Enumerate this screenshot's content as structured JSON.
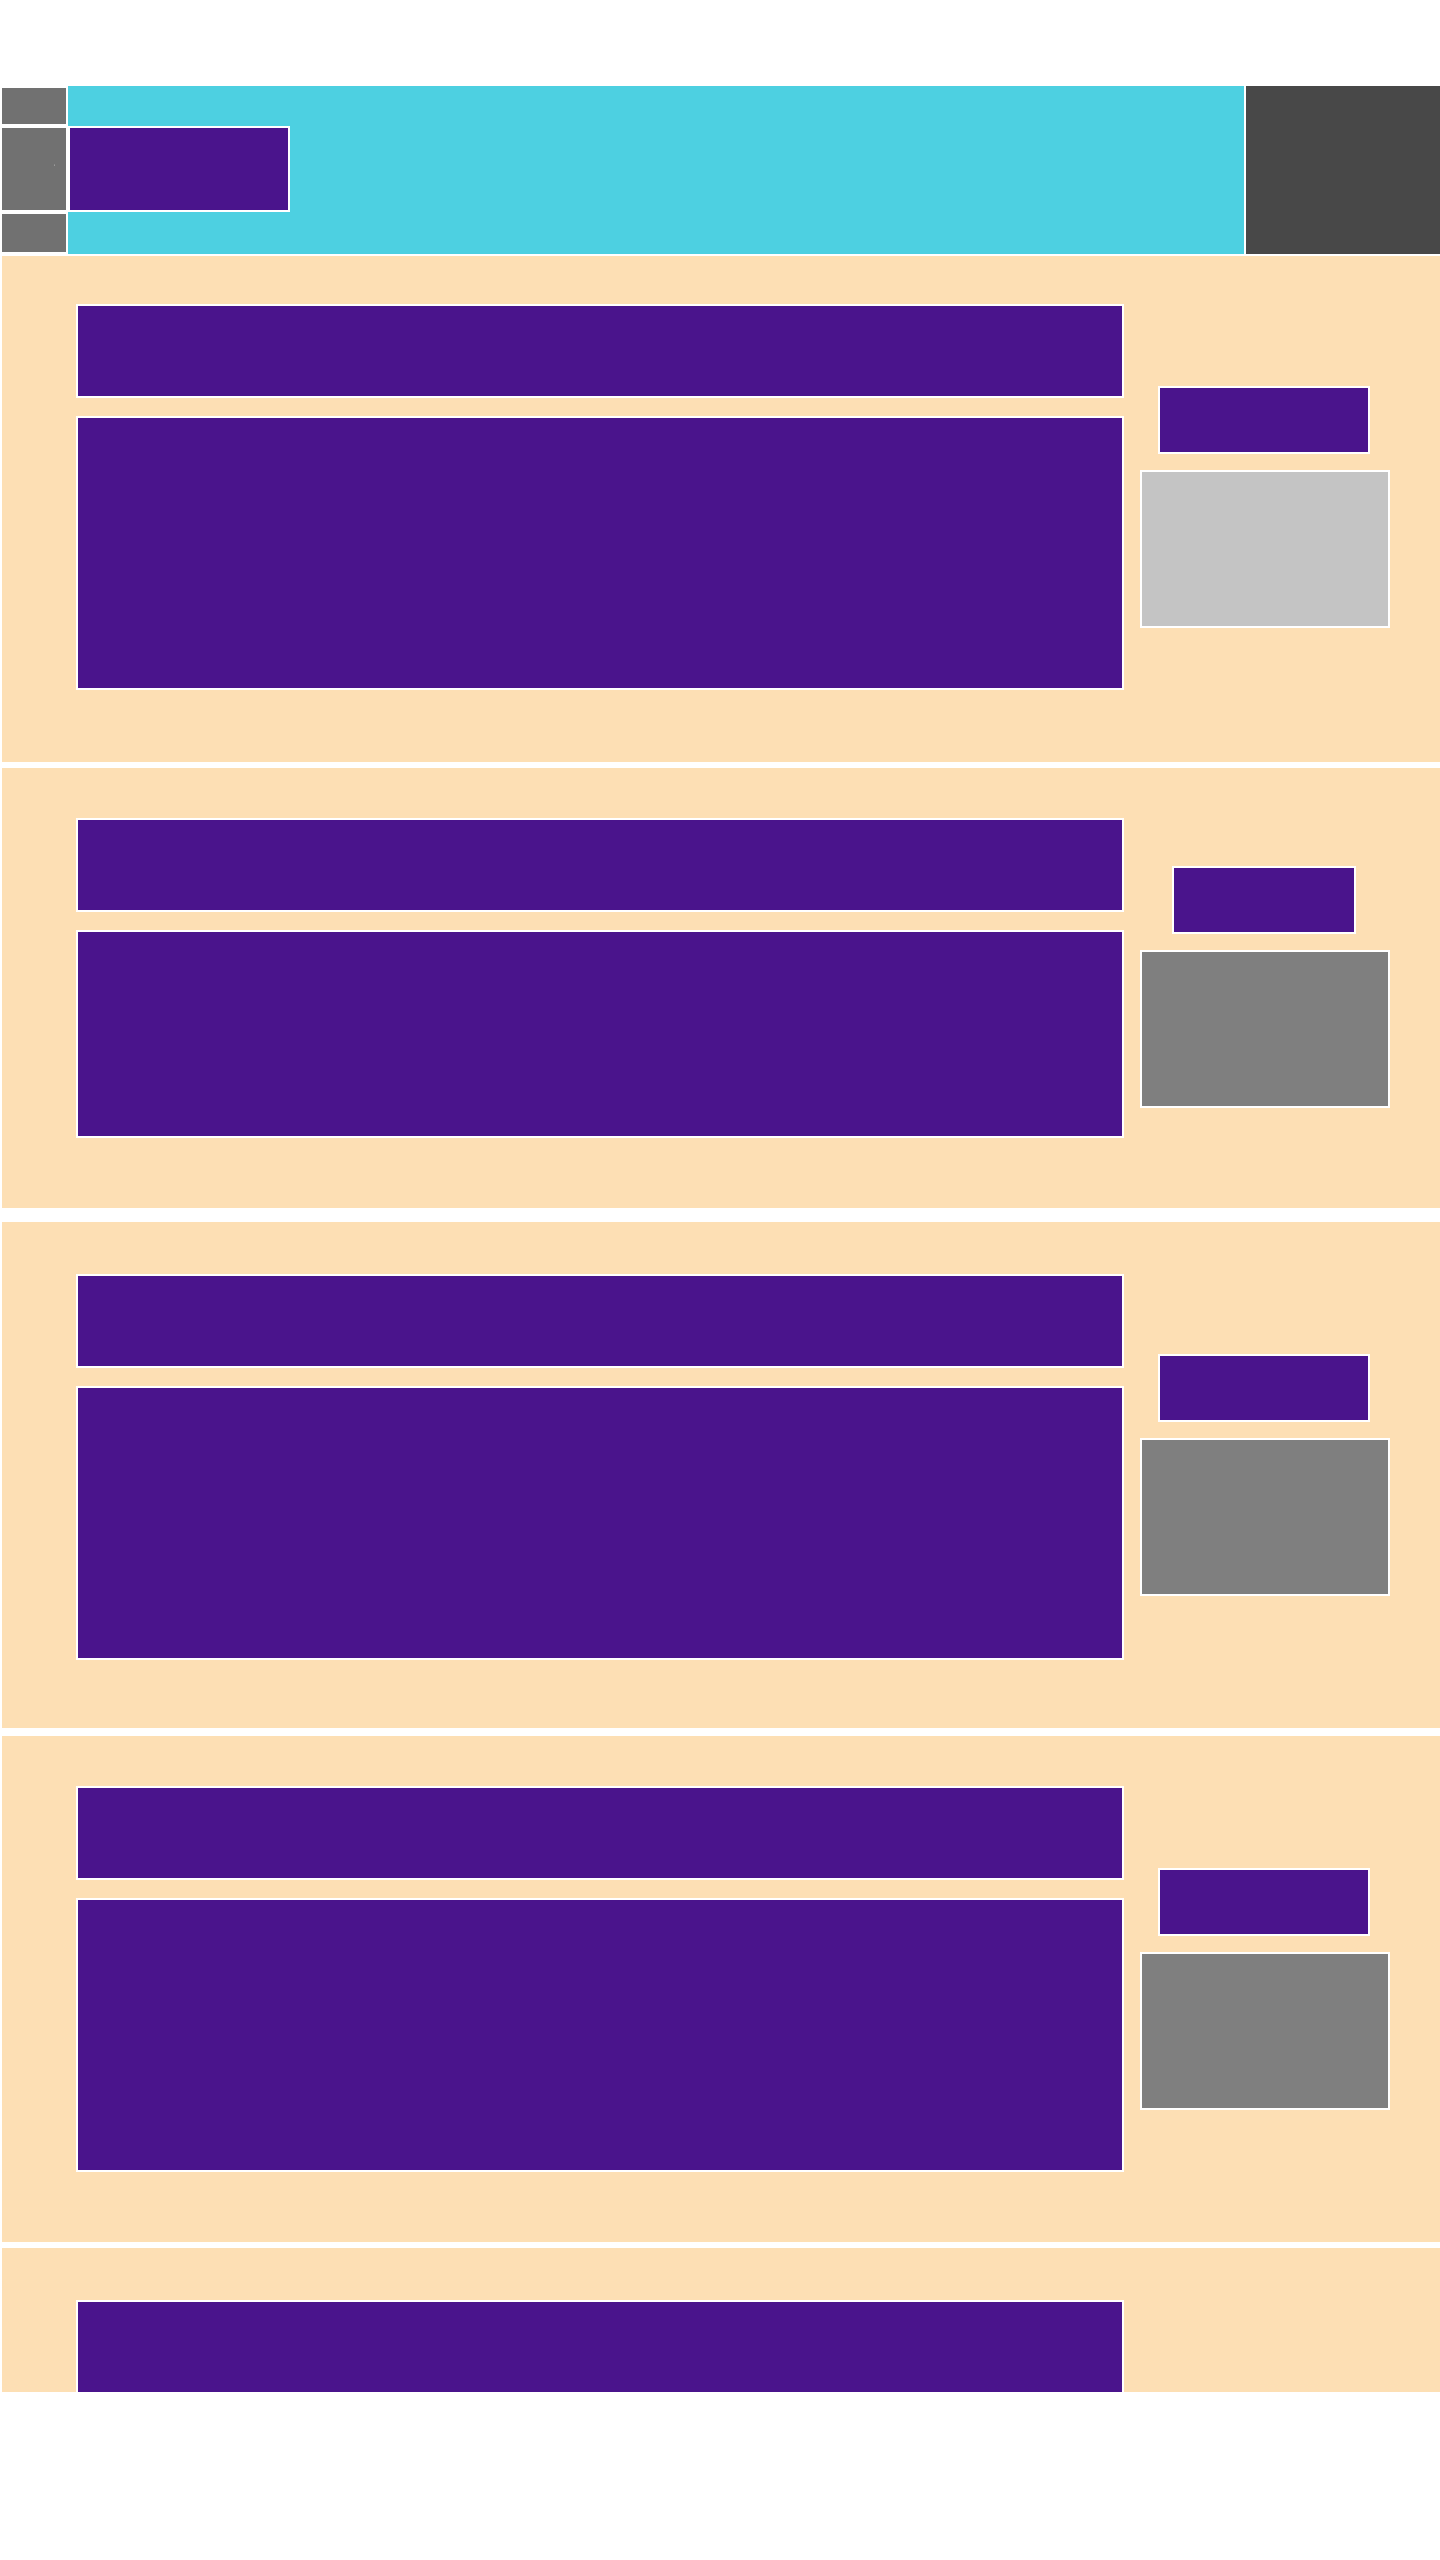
{
  "colors": {
    "page_background": "#ffffff",
    "header_accent": "#4dd0e1",
    "header_dark": "#484848",
    "nav_gray": "#717171",
    "block_purple": "#4a148c",
    "card_background": "#fddfb4",
    "thumb_light": "#c4c4c4",
    "thumb_dark": "#7f7f7f"
  },
  "header": {
    "title": "",
    "left_nav_glyph": "'"
  },
  "cards": [
    {
      "title": "",
      "body": "",
      "tag": "",
      "thumb": "light"
    },
    {
      "title": "",
      "body": "",
      "tag": "",
      "thumb": "dark"
    },
    {
      "title": "",
      "body": "",
      "tag": "",
      "thumb": "dark"
    },
    {
      "title": "",
      "body": "",
      "tag": "",
      "thumb": "dark"
    },
    {
      "title": ""
    }
  ]
}
